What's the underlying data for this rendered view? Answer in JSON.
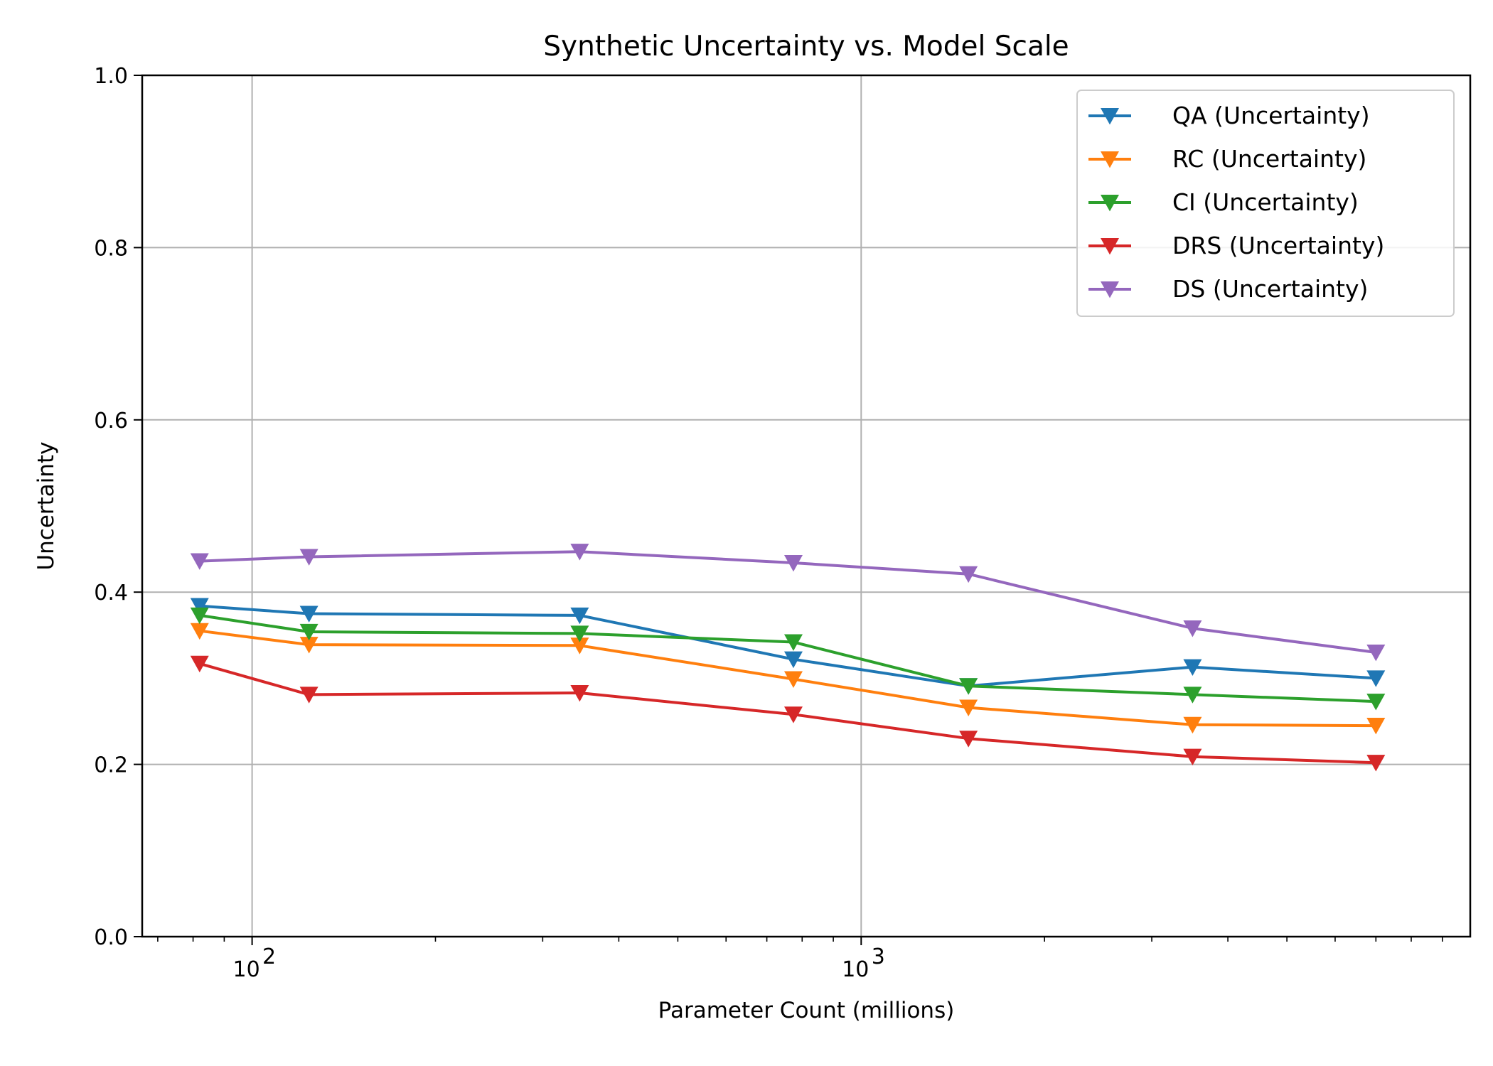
{
  "chart_data": {
    "type": "line",
    "title": "Synthetic Uncertainty vs. Model Scale",
    "xlabel": "Parameter Count (millions)",
    "ylabel": "Uncertainty",
    "xscale": "log",
    "xlim": [
      66,
      10000
    ],
    "ylim": [
      0,
      1.0
    ],
    "x_ticks_major": [
      {
        "value": 100,
        "base": "10",
        "exp": "2"
      },
      {
        "value": 1000,
        "base": "10",
        "exp": "3"
      }
    ],
    "y_ticks": [
      "0.0",
      "0.2",
      "0.4",
      "0.6",
      "0.8",
      "1.0"
    ],
    "grid": true,
    "legend_position": "top-right",
    "marker": "triangle-down",
    "x": [
      82,
      124,
      345,
      774,
      1500,
      3500,
      7000
    ],
    "series": [
      {
        "name": "QA (Uncertainty)",
        "color": "#1f77b4",
        "values": [
          0.384,
          0.375,
          0.373,
          0.322,
          0.291,
          0.313,
          0.3
        ]
      },
      {
        "name": "RC (Uncertainty)",
        "color": "#ff7f0e",
        "values": [
          0.355,
          0.339,
          0.338,
          0.299,
          0.266,
          0.246,
          0.245
        ]
      },
      {
        "name": "CI (Uncertainty)",
        "color": "#2ca02c",
        "values": [
          0.373,
          0.354,
          0.352,
          0.342,
          0.291,
          0.281,
          0.273
        ]
      },
      {
        "name": "DRS (Uncertainty)",
        "color": "#d62728",
        "values": [
          0.317,
          0.281,
          0.283,
          0.258,
          0.23,
          0.209,
          0.202
        ]
      },
      {
        "name": "DS (Uncertainty)",
        "color": "#9467bd",
        "values": [
          0.436,
          0.441,
          0.447,
          0.434,
          0.421,
          0.358,
          0.33
        ]
      }
    ]
  }
}
